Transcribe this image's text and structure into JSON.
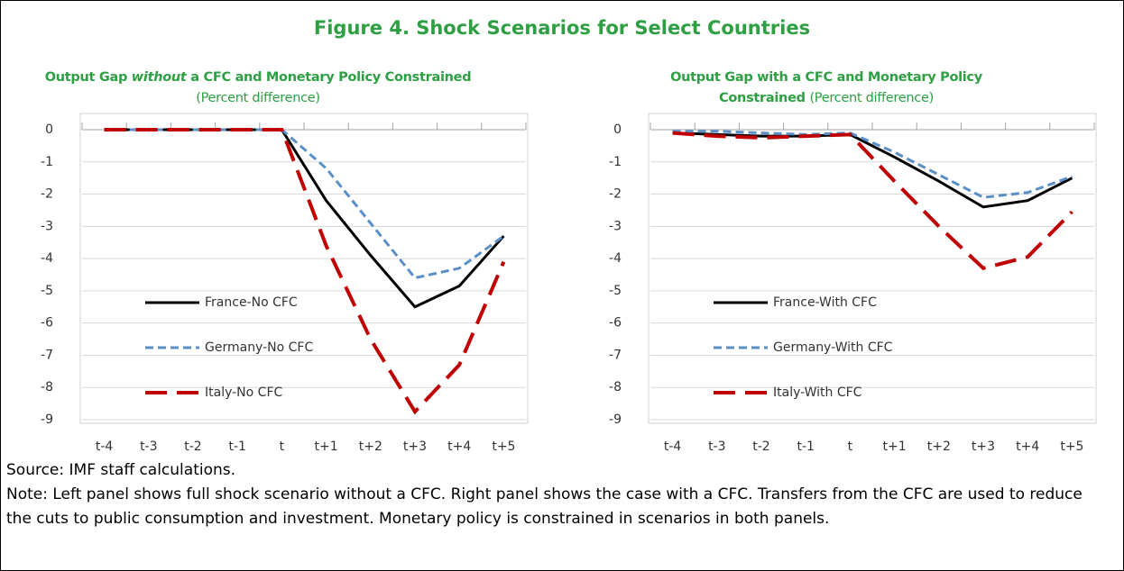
{
  "figure_title": "Figure 4. Shock Scenarios for Select Countries",
  "chart_data": [
    {
      "type": "line",
      "title_parts": [
        "Output Gap",
        "without",
        "a CFC and Monetary Policy Constrained"
      ],
      "subtitle": "(Percent difference)",
      "categories": [
        "t-4",
        "t-3",
        "t-2",
        "t-1",
        "t",
        "t+1",
        "t+2",
        "t+3",
        "t+4",
        "t+5"
      ],
      "series": [
        {
          "name": "France-No CFC",
          "color": "#000000",
          "line_style": "solid",
          "values": [
            0,
            0,
            0,
            0,
            0,
            -2.2,
            -3.9,
            -5.5,
            -4.85,
            -3.3
          ]
        },
        {
          "name": "Germany-No CFC",
          "color": "#5b8fc7",
          "line_style": "dashed",
          "values": [
            0,
            0,
            0,
            0,
            0,
            -1.2,
            -2.9,
            -4.6,
            -4.3,
            -3.3
          ]
        },
        {
          "name": "Italy-No CFC",
          "color": "#c00000",
          "line_style": "long-dashed",
          "values": [
            0,
            0,
            0,
            0,
            0,
            -3.6,
            -6.5,
            -8.75,
            -7.3,
            -4.1
          ]
        }
      ],
      "ylim": [
        -9,
        0
      ],
      "yticks": [
        0,
        -1,
        -2,
        -3,
        -4,
        -5,
        -6,
        -7,
        -8,
        -9
      ],
      "grid": true,
      "legend": "lower left"
    },
    {
      "type": "line",
      "title_parts": [
        "Output Gap with a CFC and Monetary Policy",
        "Constrained"
      ],
      "subtitle": "(Percent difference)",
      "categories": [
        "t-4",
        "t-3",
        "t-2",
        "t-1",
        "t",
        "t+1",
        "t+2",
        "t+3",
        "t+4",
        "t+5"
      ],
      "series": [
        {
          "name": "France-With CFC",
          "color": "#000000",
          "line_style": "solid",
          "values": [
            -0.1,
            -0.15,
            -0.2,
            -0.2,
            -0.15,
            -0.85,
            -1.6,
            -2.4,
            -2.2,
            -1.5
          ]
        },
        {
          "name": "Germany-With CFC",
          "color": "#5b8fc7",
          "line_style": "dashed",
          "values": [
            -0.05,
            -0.05,
            -0.1,
            -0.15,
            -0.1,
            -0.7,
            -1.4,
            -2.1,
            -1.95,
            -1.45
          ]
        },
        {
          "name": "Italy-With CFC",
          "color": "#c00000",
          "line_style": "long-dashed",
          "values": [
            -0.1,
            -0.2,
            -0.25,
            -0.2,
            -0.15,
            -1.6,
            -3.0,
            -4.3,
            -3.95,
            -2.55
          ]
        }
      ],
      "ylim": [
        -9,
        0
      ],
      "yticks": [
        0,
        -1,
        -2,
        -3,
        -4,
        -5,
        -6,
        -7,
        -8,
        -9
      ],
      "grid": true,
      "legend": "lower left"
    }
  ],
  "source": "Source: IMF staff calculations.",
  "note": "Note: Left panel shows full shock scenario without a CFC. Right panel shows the case with a CFC. Transfers from the CFC are used to reduce the cuts to public consumption and investment. Monetary policy is constrained in scenarios in both panels."
}
